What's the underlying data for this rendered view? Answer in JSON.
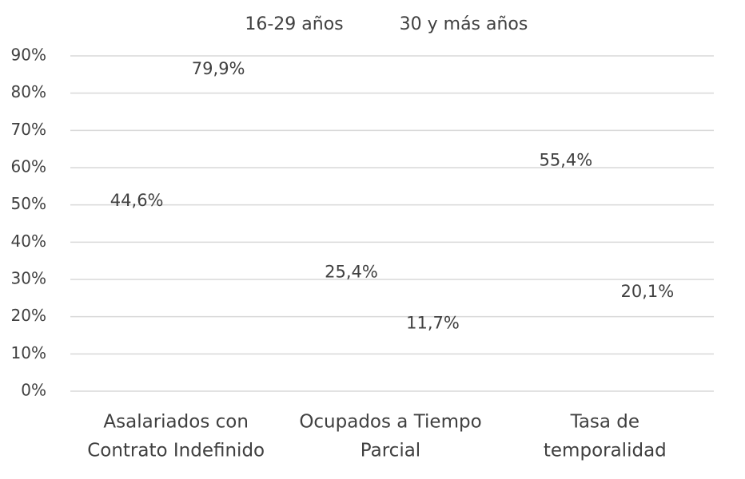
{
  "chart_data": {
    "type": "bar",
    "categories": [
      [
        "Asalariados con",
        "Contrato Indefinido"
      ],
      [
        "Ocupados a Tiempo",
        "Parcial"
      ],
      [
        "Tasa de",
        "temporalidad"
      ]
    ],
    "series": [
      {
        "name": "16-29 años",
        "color": "none",
        "values": [
          44.6,
          25.4,
          55.4
        ],
        "value_labels": [
          "44,6%",
          "25,4%",
          "55,4%"
        ]
      },
      {
        "name": "30 y más años",
        "color": "none",
        "values": [
          79.9,
          11.7,
          20.1
        ],
        "value_labels": [
          "79,9%",
          "11,7%",
          "20,1%"
        ]
      }
    ],
    "ylim": [
      0,
      90
    ],
    "yticks": [
      {
        "value": 0,
        "label": "0%"
      },
      {
        "value": 10,
        "label": "10%"
      },
      {
        "value": 20,
        "label": "20%"
      },
      {
        "value": 30,
        "label": "30%"
      },
      {
        "value": 40,
        "label": "40%"
      },
      {
        "value": 50,
        "label": "50%"
      },
      {
        "value": 60,
        "label": "60%"
      },
      {
        "value": 70,
        "label": "70%"
      },
      {
        "value": 80,
        "label": "80%"
      },
      {
        "value": 90,
        "label": "90%"
      }
    ],
    "grid": true,
    "legend": "top"
  }
}
